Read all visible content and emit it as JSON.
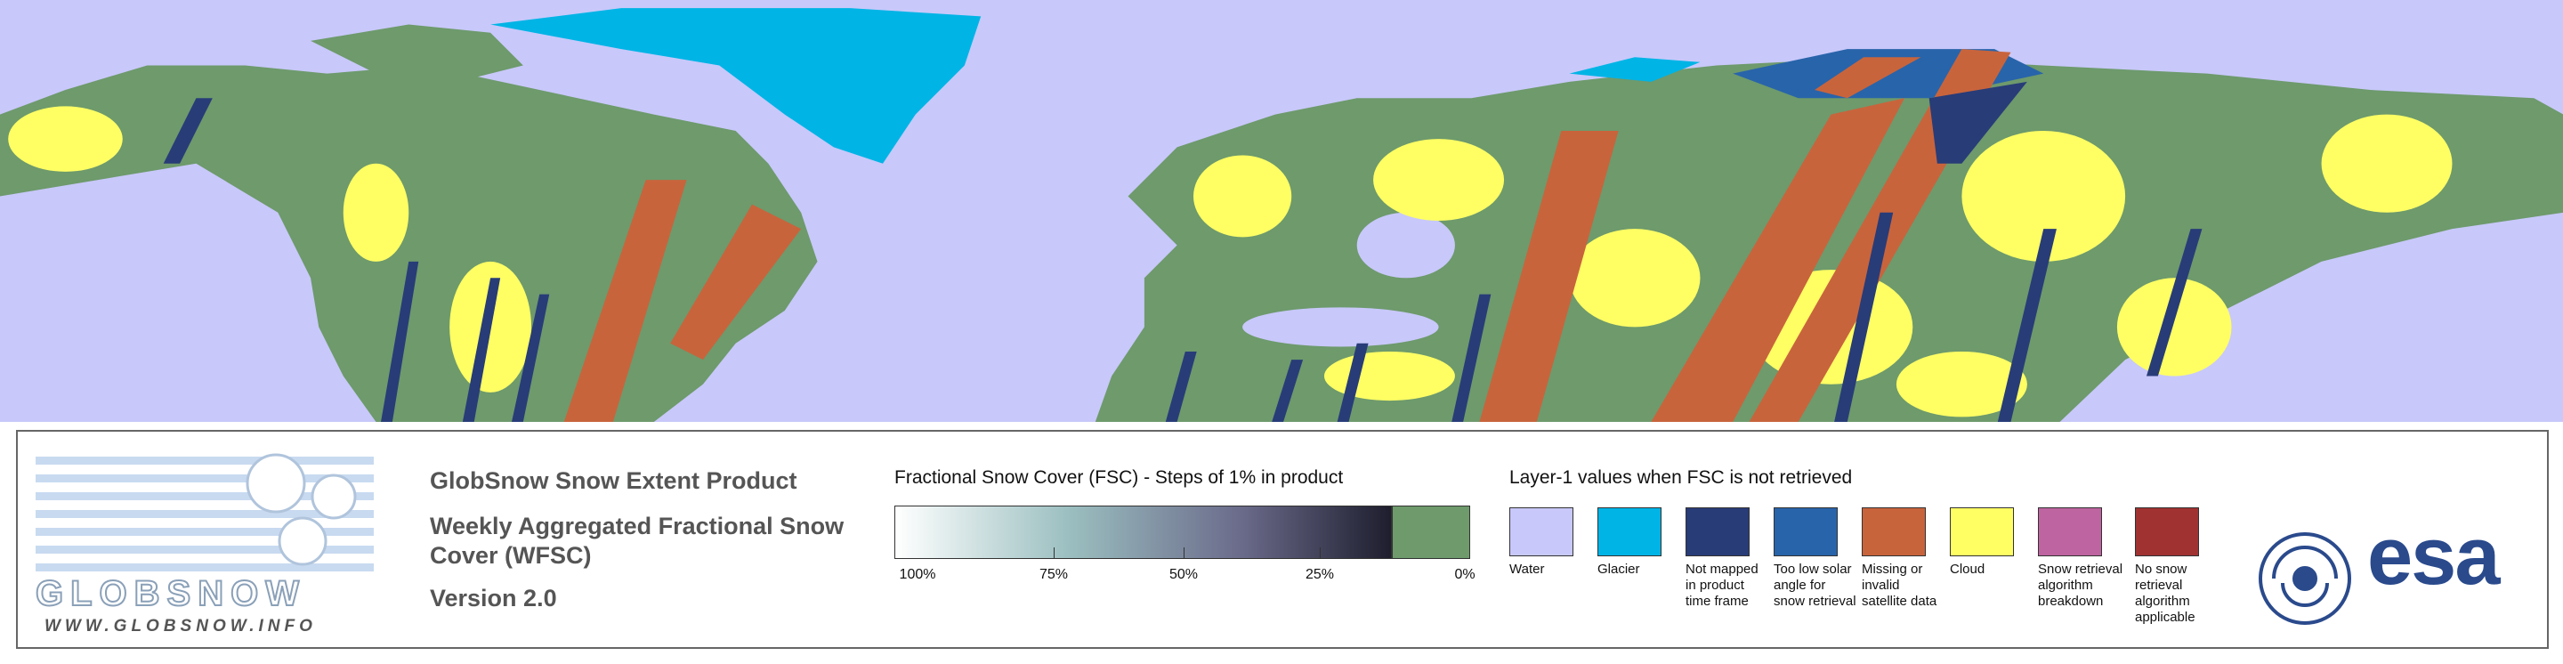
{
  "logo": {
    "name": "GLOBSNOW",
    "url": "WWW.GLOBSNOW.INFO"
  },
  "product": {
    "title": "GlobSnow Snow Extent Product",
    "subtitle": "Weekly Aggregated Fractional Snow Cover (WFSC)",
    "version": "Version 2.0"
  },
  "fsc_scale": {
    "title": "Fractional Snow Cover (FSC) - Steps of 1% in product",
    "labels": [
      "100%",
      "75%",
      "50%",
      "25%",
      "0%"
    ]
  },
  "layer1": {
    "title": "Layer-1 values when FSC is not retrieved",
    "items": [
      {
        "label": "Water",
        "color": "#c8c8fa"
      },
      {
        "label": "Glacier",
        "color": "#00b4e6"
      },
      {
        "label": "Not mapped in product time frame",
        "color": "#283c78"
      },
      {
        "label": "Too low solar angle for snow retrieval",
        "color": "#2864aa"
      },
      {
        "label": "Missing or invalid satellite data",
        "color": "#c8643c"
      },
      {
        "label": "Cloud",
        "color": "#ffff64"
      },
      {
        "label": "Snow retrieval algorithm breakdown",
        "color": "#be64a0"
      },
      {
        "label": "No snow retrieval algorithm applicable",
        "color": "#a03232"
      }
    ]
  },
  "esa_logo": "esa"
}
